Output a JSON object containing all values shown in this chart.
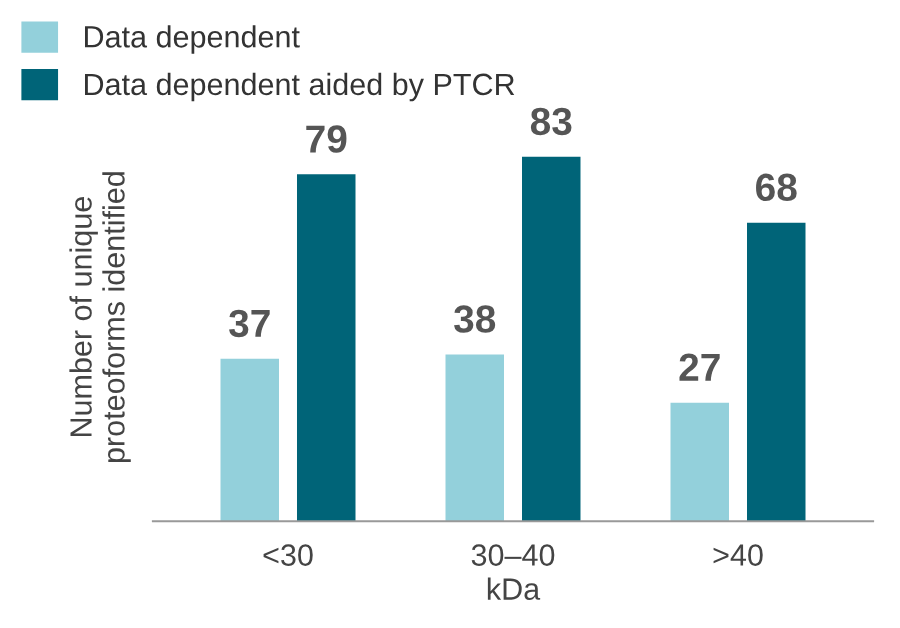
{
  "chart_data": {
    "type": "bar",
    "categories": [
      "<30",
      "30–40",
      ">40"
    ],
    "xlabel": "kDa",
    "ylabel": "Number of unique\nproteoforms identified",
    "series": [
      {
        "name": "Data dependent",
        "color": "#93d0db",
        "values": [
          37,
          38,
          27
        ]
      },
      {
        "name": "Data dependent aided by PTCR",
        "color": "#006478",
        "values": [
          79,
          83,
          68
        ]
      }
    ],
    "data_labels": true,
    "legend": "top left",
    "grid": false,
    "tick_labels": "x"
  }
}
